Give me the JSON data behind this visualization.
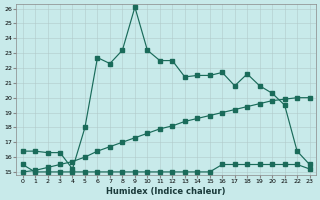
{
  "xlabel": "Humidex (Indice chaleur)",
  "ylabel": "",
  "bg_color": "#c8eaea",
  "grid_color": "#b0c8c8",
  "line_color": "#1a6b5a",
  "xmin": 0,
  "xmax": 23,
  "ymin": 15,
  "ymax": 26,
  "line1_x": [
    0,
    1,
    2,
    3,
    4,
    5,
    6,
    7,
    8,
    9,
    10,
    11,
    12,
    13,
    14,
    15,
    16,
    17,
    18,
    19,
    20,
    21,
    22,
    23
  ],
  "line1_y": [
    16.4,
    16.4,
    16.3,
    16.3,
    15.2,
    18.0,
    22.7,
    22.3,
    23.2,
    26.1,
    23.2,
    22.5,
    22.5,
    21.4,
    21.5,
    21.5,
    21.7,
    20.8,
    21.6,
    20.8,
    20.3,
    19.5,
    16.4,
    15.5
  ],
  "line2_x": [
    0,
    1,
    2,
    3,
    4,
    5,
    6,
    7,
    8,
    9,
    10,
    11,
    12,
    13,
    14,
    15,
    16,
    17,
    18,
    19,
    20,
    21,
    22,
    23
  ],
  "line2_y": [
    15.0,
    15.1,
    15.3,
    15.5,
    15.7,
    16.0,
    16.4,
    16.7,
    17.0,
    17.3,
    17.6,
    17.9,
    18.1,
    18.4,
    18.6,
    18.8,
    19.0,
    19.2,
    19.4,
    19.6,
    19.8,
    19.9,
    20.0,
    20.0
  ],
  "line3_x": [
    0,
    1,
    2,
    3,
    4,
    5,
    6,
    7,
    8,
    9,
    10,
    11,
    12,
    13,
    14,
    15,
    16,
    17,
    18,
    19,
    20,
    21,
    22,
    23
  ],
  "line3_y": [
    15.5,
    15.0,
    15.0,
    15.0,
    15.0,
    15.0,
    15.0,
    15.0,
    15.0,
    15.0,
    15.0,
    15.0,
    15.0,
    15.0,
    15.0,
    15.0,
    15.5,
    15.5,
    15.5,
    15.5,
    15.5,
    15.5,
    15.5,
    15.2
  ],
  "xticks": [
    0,
    1,
    2,
    3,
    4,
    5,
    6,
    7,
    8,
    9,
    10,
    11,
    12,
    13,
    14,
    15,
    16,
    17,
    18,
    19,
    20,
    21,
    22,
    23
  ],
  "yticks": [
    15,
    16,
    17,
    18,
    19,
    20,
    21,
    22,
    23,
    24,
    25,
    26
  ]
}
